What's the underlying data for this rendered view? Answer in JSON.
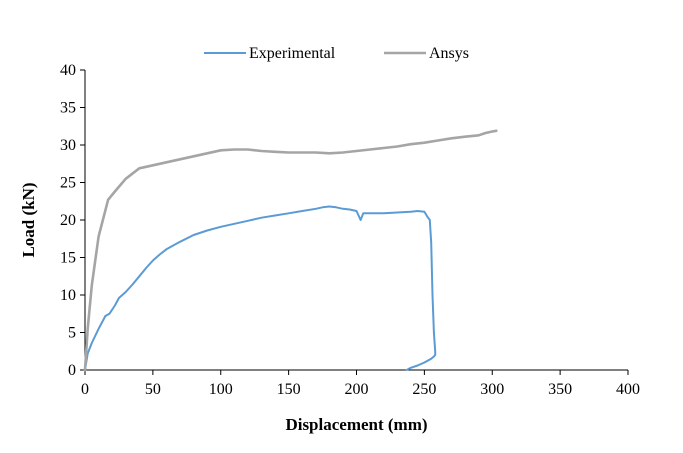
{
  "chart_data": {
    "type": "line",
    "title": "",
    "xlabel": "Displacement (mm)",
    "ylabel": "Load (kN)",
    "xlim": [
      0,
      400
    ],
    "ylim": [
      0,
      40
    ],
    "xticks": [
      0,
      50,
      100,
      150,
      200,
      250,
      300,
      350,
      400
    ],
    "yticks": [
      0,
      5,
      10,
      15,
      20,
      25,
      30,
      35,
      40
    ],
    "grid": false,
    "legend_position": "top",
    "series": [
      {
        "name": "Experimental",
        "color": "#5b9bd5",
        "x": [
          0,
          2,
          5,
          10,
          15,
          18,
          22,
          25,
          30,
          35,
          40,
          45,
          50,
          55,
          60,
          70,
          80,
          90,
          100,
          110,
          120,
          130,
          140,
          150,
          160,
          170,
          175,
          180,
          185,
          190,
          195,
          200,
          203,
          205,
          210,
          220,
          230,
          240,
          245,
          250,
          252,
          254,
          255,
          256,
          257,
          258,
          258,
          257,
          255,
          250,
          245,
          240,
          237
        ],
        "y": [
          0,
          2.2,
          3.6,
          5.5,
          7.2,
          7.5,
          8.6,
          9.6,
          10.4,
          11.4,
          12.5,
          13.6,
          14.6,
          15.4,
          16.1,
          17.1,
          18.0,
          18.6,
          19.1,
          19.5,
          19.9,
          20.3,
          20.6,
          20.9,
          21.2,
          21.5,
          21.7,
          21.8,
          21.7,
          21.5,
          21.4,
          21.2,
          20.0,
          20.9,
          20.9,
          20.9,
          21.0,
          21.1,
          21.2,
          21.1,
          20.5,
          20.0,
          17.0,
          10.0,
          5.0,
          2.5,
          2.0,
          1.8,
          1.5,
          1.0,
          0.6,
          0.3,
          0
        ]
      },
      {
        "name": "Ansys",
        "color": "#a5a5a5",
        "x": [
          0,
          2,
          5,
          10,
          17,
          22,
          30,
          40,
          50,
          60,
          70,
          80,
          90,
          100,
          110,
          120,
          130,
          140,
          150,
          160,
          170,
          180,
          190,
          200,
          210,
          220,
          230,
          240,
          250,
          260,
          270,
          280,
          290,
          295,
          300,
          303
        ],
        "y": [
          0,
          5.5,
          11.3,
          17.8,
          22.7,
          23.8,
          25.5,
          26.9,
          27.3,
          27.7,
          28.1,
          28.5,
          28.9,
          29.3,
          29.4,
          29.4,
          29.2,
          29.1,
          29.0,
          29.0,
          29.0,
          28.9,
          29.0,
          29.2,
          29.4,
          29.6,
          29.8,
          30.1,
          30.3,
          30.6,
          30.9,
          31.1,
          31.3,
          31.6,
          31.8,
          31.9
        ]
      }
    ]
  }
}
